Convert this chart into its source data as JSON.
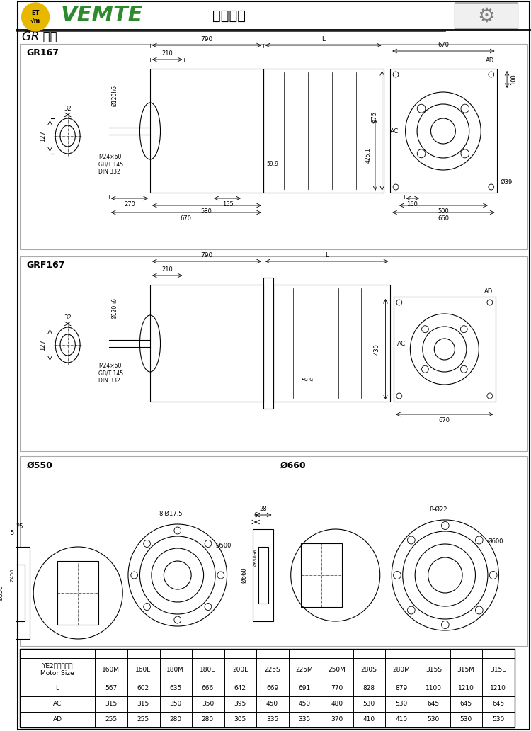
{
  "title_main": "减速电机",
  "brand": "VEMTE",
  "series": "GR 系列",
  "bg_color": "#ffffff",
  "border_color": "#000000",
  "line_color": "#000000",
  "light_line": "#888888",
  "section1_label": "GR167",
  "section2_label": "GRF167",
  "section3_label1": "Ø550",
  "section3_label2": "Ø660",
  "table_headers": [
    "YE2电机机座号\nMotor Size",
    "160M",
    "160L",
    "180M",
    "180L",
    "200L",
    "225S",
    "225M",
    "250M",
    "280S",
    "280M",
    "315S",
    "315M",
    "315L"
  ],
  "table_rows": [
    [
      "L",
      "567",
      "602",
      "635",
      "666",
      "642",
      "669",
      "691",
      "770",
      "828",
      "879",
      "1100",
      "1210",
      "1210"
    ],
    [
      "AC",
      "315",
      "315",
      "350",
      "350",
      "395",
      "450",
      "450",
      "480",
      "530",
      "530",
      "645",
      "645",
      "645"
    ],
    [
      "AD",
      "255",
      "255",
      "280",
      "280",
      "305",
      "335",
      "335",
      "370",
      "410",
      "410",
      "530",
      "530",
      "530"
    ]
  ],
  "gr167_dims": {
    "top_dim": "790",
    "top_dim2": "L",
    "shaft_dim": "Ø120h6",
    "d1": "210",
    "d2": "59.9",
    "ac_label": "AC",
    "thread": "M24×60\nGB/T 145\nDIN 332",
    "d3": "155",
    "d4": "270",
    "d5": "580",
    "d6": "670",
    "shaft_side_d1": "32",
    "shaft_side_d2": "127",
    "rear_w": "670",
    "rear_ad": "AD",
    "rear_h": "675",
    "rear_h2": "425.1",
    "rear_side": "100",
    "rear_d1": "160",
    "rear_d2": "500",
    "rear_d3": "660",
    "rear_hole": "Ø39"
  },
  "grf167_dims": {
    "top_dim": "790",
    "top_dim2": "L",
    "shaft_dim": "Ø120h6",
    "d1": "210",
    "d2": "59.9",
    "ac_label": "AC",
    "thread": "M24×60\nGB/T 145\nDIN 332",
    "shaft_side_d1": "32",
    "shaft_side_d2": "127",
    "rear_w": "670",
    "rear_ad": "AD",
    "rear_h": "430"
  },
  "flange550": {
    "d1": "Ø550",
    "d2": "Ø450",
    "d3": "25",
    "d4": "5",
    "holes": "8-Ø17.5",
    "flange_d": "Ø500"
  },
  "flange660": {
    "d1": "Ø660",
    "d2": "Ø550h6",
    "d3": "28",
    "d4": "6",
    "holes": "8-Ø22",
    "flange_d": "Ø600"
  }
}
